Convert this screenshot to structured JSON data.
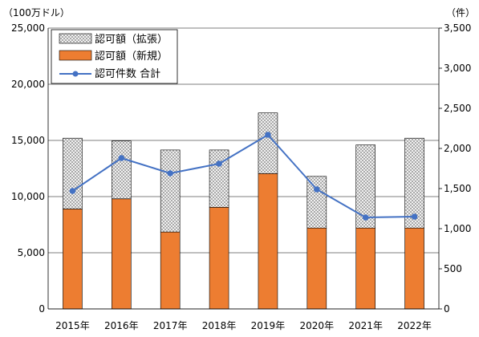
{
  "chart_data": {
    "type": "bar",
    "stacked": true,
    "categories": [
      "2015年",
      "2016年",
      "2017年",
      "2018年",
      "2019年",
      "2020年",
      "2021年",
      "2022年"
    ],
    "y_unit_left": "（100万ドル）",
    "y_unit_right": "（件）",
    "ylim_left": [
      0,
      25000
    ],
    "ylim_right": [
      0,
      3500
    ],
    "yticks_left": [
      "0",
      "5,000",
      "10,000",
      "15,000",
      "20,000",
      "25,000"
    ],
    "yticks_right": [
      "0",
      "500",
      "1,000",
      "1,500",
      "2,000",
      "2,500",
      "3,000",
      "3,500"
    ],
    "grid": true,
    "legend_position": "top-left",
    "series": [
      {
        "name": "認可額（新規）",
        "kind": "bar",
        "axis": "left",
        "color": "#ED7D31",
        "values": [
          8900,
          9800,
          6850,
          9050,
          12050,
          7200,
          7200,
          7200
        ]
      },
      {
        "name": "認可額（拡張）",
        "kind": "bar",
        "axis": "left",
        "pattern": "hatched",
        "color": "#D9D9D9",
        "values": [
          6300,
          5150,
          7300,
          5100,
          5400,
          4600,
          7400,
          8000
        ]
      },
      {
        "name": "認可件数 合計",
        "kind": "line",
        "axis": "right",
        "color": "#4472C4",
        "values": [
          1470,
          1880,
          1690,
          1810,
          2170,
          1490,
          1140,
          1150
        ]
      }
    ]
  }
}
